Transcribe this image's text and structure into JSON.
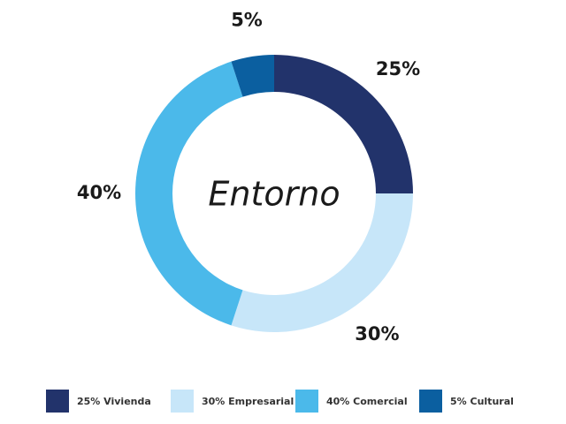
{
  "chart_data": {
    "type": "donut",
    "center_text": "Entorno",
    "categories": [
      "25% Vivienda",
      "30% Empresarial",
      "40% Comercial",
      "5% Cultural"
    ],
    "values": [
      25,
      30,
      40,
      5
    ],
    "value_labels": [
      "25%",
      "30%",
      "40%",
      "5%"
    ],
    "colors": [
      "#22336b",
      "#c7e6f9",
      "#4bb9ea",
      "#0b5fa0"
    ]
  }
}
